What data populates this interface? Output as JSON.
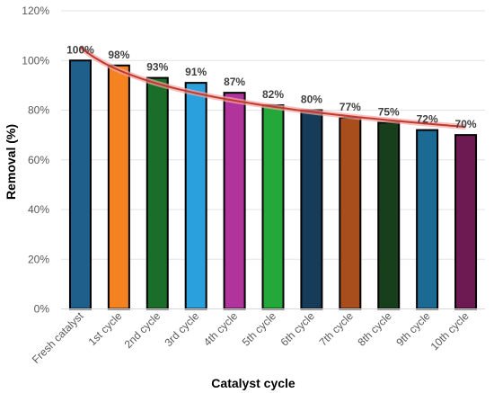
{
  "chart_data": {
    "type": "bar",
    "categories": [
      "Fresh catalyst",
      "1st cycle",
      "2nd cycle",
      "3rd cycle",
      "4th cycle",
      "5th cycle",
      "6th cycle",
      "7th cycle",
      "8th cycle",
      "9th cycle",
      "10th cycle"
    ],
    "values": [
      100,
      98,
      93,
      91,
      87,
      82,
      80,
      77,
      75,
      72,
      70
    ],
    "data_labels": [
      "100%",
      "98%",
      "93%",
      "91%",
      "87%",
      "82%",
      "80%",
      "77%",
      "75%",
      "72%",
      "70%"
    ],
    "bar_colors": [
      "#1f5f8b",
      "#f58220",
      "#1a6e2a",
      "#2aa0dc",
      "#b0349c",
      "#24a83a",
      "#163c5a",
      "#a84d1c",
      "#173f1c",
      "#1a6a94",
      "#6e1a52"
    ],
    "trendline": {
      "type": "logarithmic",
      "color": "#c0392b",
      "glow": "#f4a6a6"
    },
    "xlabel": "Catalyst cycle",
    "ylabel": "Removal (%)",
    "ylim": [
      0,
      120
    ],
    "yticks": [
      0,
      20,
      40,
      60,
      80,
      100,
      120
    ],
    "ytick_labels": [
      "0%",
      "20%",
      "40%",
      "60%",
      "80%",
      "100%",
      "120%"
    ],
    "grid": true,
    "legend": "none"
  }
}
